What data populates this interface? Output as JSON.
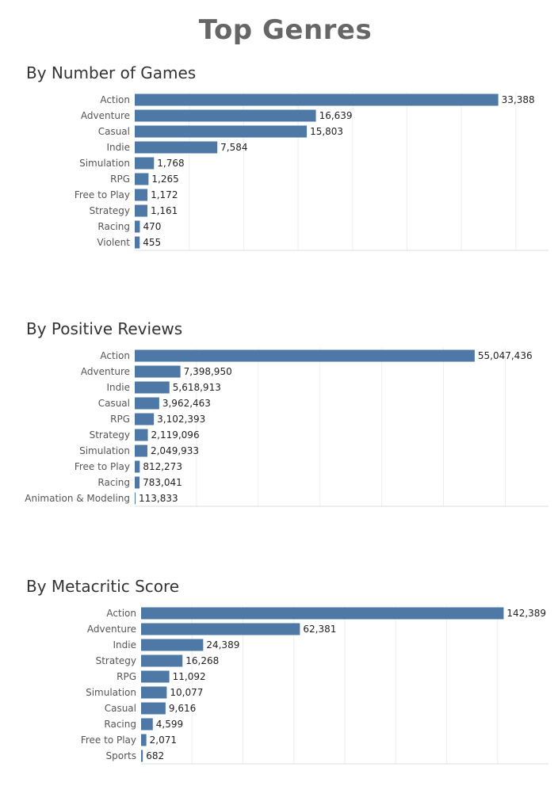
{
  "page": {
    "title": "Top Genres"
  },
  "colors": {
    "bar": "#4e79a7",
    "grid": "#eeeeee",
    "axis": "#dddddd"
  },
  "chart_data": [
    {
      "type": "bar",
      "orientation": "horizontal",
      "title": "By Number of Games",
      "categories": [
        "Action",
        "Adventure",
        "Casual",
        "Indie",
        "Simulation",
        "RPG",
        "Free to Play",
        "Strategy",
        "Racing",
        "Violent"
      ],
      "values": [
        33388,
        16639,
        15803,
        7584,
        1768,
        1265,
        1172,
        1161,
        470,
        455
      ],
      "value_labels": [
        "33,388",
        "16,639",
        "15,803",
        "7,584",
        "1,768",
        "1,265",
        "1,172",
        "1,161",
        "470",
        "455"
      ],
      "xlim": [
        0,
        38000
      ],
      "grid": true
    },
    {
      "type": "bar",
      "orientation": "horizontal",
      "title": "By Positive Reviews",
      "categories": [
        "Action",
        "Adventure",
        "Indie",
        "Casual",
        "RPG",
        "Strategy",
        "Simulation",
        "Free to Play",
        "Racing",
        "Animation & Modeling"
      ],
      "values": [
        55047436,
        7398950,
        5618913,
        3962463,
        3102393,
        2119096,
        2049933,
        812273,
        783041,
        113833
      ],
      "value_labels": [
        "55,047,436",
        "7,398,950",
        "5,618,913",
        "3,962,463",
        "3,102,393",
        "2,119,096",
        "2,049,933",
        "812,273",
        "783,041",
        "113,833"
      ],
      "xlim": [
        0,
        67000000
      ],
      "grid": true
    },
    {
      "type": "bar",
      "orientation": "horizontal",
      "title": "By Metacritic Score",
      "categories": [
        "Action",
        "Adventure",
        "Indie",
        "Strategy",
        "RPG",
        "Simulation",
        "Casual",
        "Racing",
        "Free to Play",
        "Sports"
      ],
      "values": [
        142389,
        62381,
        24389,
        16268,
        11092,
        10077,
        9616,
        4599,
        2071,
        682
      ],
      "value_labels": [
        "142,389",
        "62,381",
        "24,389",
        "16,268",
        "11,092",
        "10,077",
        "9,616",
        "4,599",
        "2,071",
        "682"
      ],
      "xlim": [
        0,
        160000
      ],
      "grid": true
    }
  ]
}
